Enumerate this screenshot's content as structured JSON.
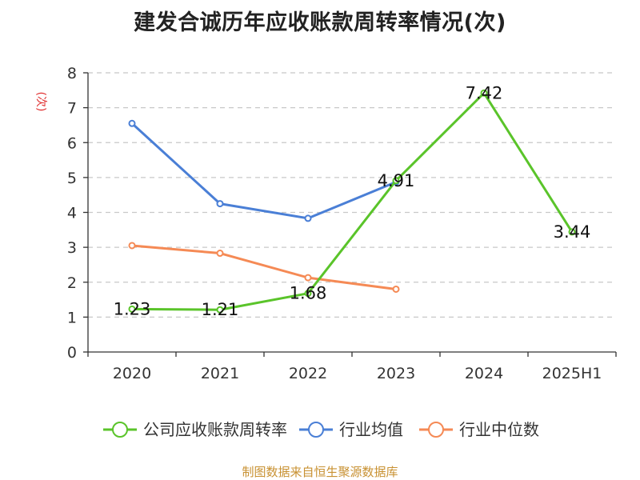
{
  "chart_data": {
    "type": "line",
    "title": "建发合诚历年应收账款周转率情况(次)",
    "ylabel": "(次)",
    "xlabel": "",
    "categories": [
      "2020",
      "2021",
      "2022",
      "2023",
      "2024",
      "2025H1"
    ],
    "ylim": [
      0,
      8
    ],
    "yticks": [
      "0",
      "1",
      "2",
      "3",
      "4",
      "5",
      "6",
      "7",
      "8"
    ],
    "grid": true,
    "legend_position": "bottom",
    "series": [
      {
        "name": "公司应收账款周转率",
        "color": "#5ac42a",
        "values": [
          1.23,
          1.21,
          1.68,
          4.91,
          7.42,
          3.44
        ],
        "labels": [
          "1.23",
          "1.21",
          "1.68",
          "4.91",
          "7.42",
          "3.44"
        ]
      },
      {
        "name": "行业均值",
        "color": "#4a7fd6",
        "values": [
          6.55,
          4.25,
          3.83,
          4.87,
          null,
          null
        ]
      },
      {
        "name": "行业中位数",
        "color": "#f58a55",
        "values": [
          3.05,
          2.83,
          2.13,
          1.8,
          null,
          null
        ]
      }
    ]
  },
  "source_note": "制图数据来自恒生聚源数据库"
}
